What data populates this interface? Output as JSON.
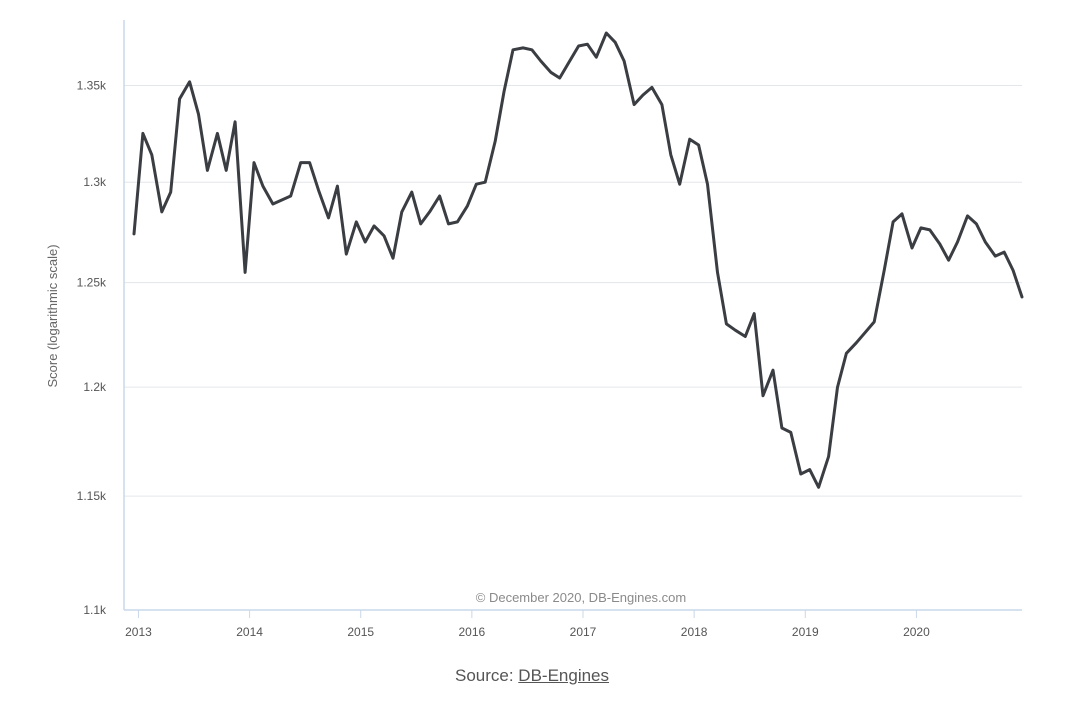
{
  "chart_data": {
    "type": "line",
    "ylabel": "Score (logarithmic scale)",
    "yscale": "log",
    "ylim": [
      1100,
      1385
    ],
    "yticks": [
      1100,
      1150,
      1200,
      1250,
      1300,
      1350
    ],
    "ytick_labels": [
      "1.1k",
      "1.15k",
      "1.2k",
      "1.25k",
      "1.3k",
      "1.35k"
    ],
    "xlim": [
      2012.87,
      2020.95
    ],
    "xticks": [
      2013,
      2014,
      2015,
      2016,
      2017,
      2018,
      2019,
      2020
    ],
    "xtick_labels": [
      "2013",
      "2014",
      "2015",
      "2016",
      "2017",
      "2018",
      "2019",
      "2020"
    ],
    "grid": true,
    "credits": "© December 2020, DB-Engines.com",
    "series": [
      {
        "color": "#3a3d42",
        "x": [
          2012.96,
          2013.04,
          2013.12,
          2013.21,
          2013.29,
          2013.37,
          2013.46,
          2013.54,
          2013.62,
          2013.71,
          2013.79,
          2013.87,
          2013.96,
          2014.04,
          2014.12,
          2014.21,
          2014.29,
          2014.37,
          2014.46,
          2014.54,
          2014.62,
          2014.71,
          2014.79,
          2014.87,
          2014.96,
          2015.04,
          2015.12,
          2015.21,
          2015.29,
          2015.37,
          2015.46,
          2015.54,
          2015.62,
          2015.71,
          2015.79,
          2015.87,
          2015.96,
          2016.04,
          2016.12,
          2016.21,
          2016.29,
          2016.37,
          2016.46,
          2016.54,
          2016.62,
          2016.71,
          2016.79,
          2016.87,
          2016.96,
          2017.04,
          2017.12,
          2017.21,
          2017.29,
          2017.37,
          2017.46,
          2017.54,
          2017.62,
          2017.71,
          2017.79,
          2017.87,
          2017.96,
          2018.04,
          2018.12,
          2018.21,
          2018.29,
          2018.37,
          2018.46,
          2018.54,
          2018.62,
          2018.71,
          2018.79,
          2018.87,
          2018.96,
          2019.04,
          2019.12,
          2019.21,
          2019.29,
          2019.37,
          2019.46,
          2019.54,
          2019.62,
          2019.71,
          2019.79,
          2019.87,
          2019.96,
          2020.04,
          2020.12,
          2020.21,
          2020.29,
          2020.37,
          2020.46,
          2020.54,
          2020.62,
          2020.71,
          2020.79,
          2020.87,
          2020.95
        ],
        "y": [
          1274,
          1325,
          1314,
          1285,
          1295,
          1343,
          1352,
          1335,
          1306,
          1325,
          1306,
          1331,
          1255,
          1310,
          1298,
          1289,
          1291,
          1293,
          1310,
          1310,
          1296,
          1282,
          1298,
          1264,
          1280,
          1270,
          1278,
          1273,
          1262,
          1285,
          1295,
          1279,
          1285,
          1293,
          1279,
          1280,
          1288,
          1299,
          1300,
          1321,
          1347,
          1369,
          1370,
          1369,
          1363,
          1357,
          1354,
          1362,
          1371,
          1372,
          1365,
          1378,
          1373,
          1363,
          1340,
          1345,
          1349,
          1340,
          1314,
          1299,
          1322,
          1319,
          1299,
          1255,
          1230,
          1227,
          1224,
          1235,
          1196,
          1208,
          1181,
          1179,
          1160,
          1162,
          1154,
          1168,
          1200,
          1216,
          1221,
          1226,
          1231,
          1256,
          1280,
          1284,
          1267,
          1277,
          1276,
          1269,
          1261,
          1270,
          1283,
          1279,
          1270,
          1263,
          1265,
          1256,
          1243
        ]
      }
    ]
  },
  "source": {
    "prefix": "Source: ",
    "link_text": "DB-Engines"
  }
}
